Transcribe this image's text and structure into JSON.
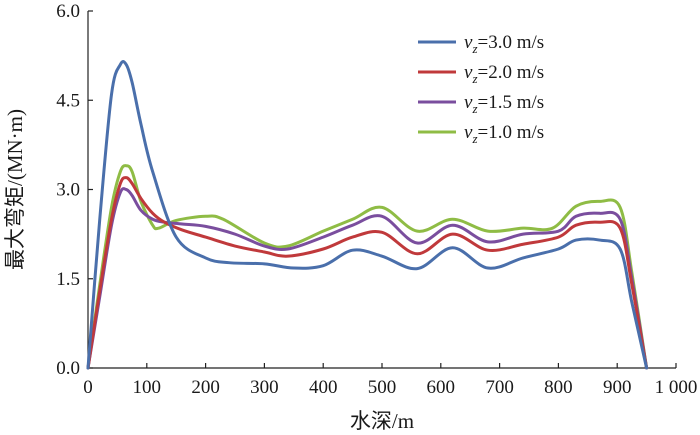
{
  "chart_data": {
    "type": "line",
    "xlabel": "水深/m",
    "ylabel": "最大弯矩/(MN·m)",
    "xlim": [
      0,
      1000
    ],
    "ylim": [
      0,
      6.0
    ],
    "x_ticks": [
      0,
      100,
      200,
      300,
      400,
      500,
      600,
      700,
      800,
      900,
      1000
    ],
    "x_tick_labels": [
      "0",
      "100",
      "200",
      "300",
      "400",
      "500",
      "600",
      "700",
      "800",
      "900",
      "1 000"
    ],
    "y_ticks": [
      0,
      1.5,
      3.0,
      4.5,
      6.0
    ],
    "y_tick_labels": [
      "0.0",
      "1.5",
      "3.0",
      "4.5",
      "6.0"
    ],
    "grid": false,
    "legend_position": "top-right",
    "series": [
      {
        "name": "vz=3.0 m/s",
        "legend_parts": [
          "v",
          "z",
          "=3.0 m/s"
        ],
        "color": "#4a6fab",
        "x": [
          0,
          20,
          40,
          55,
          65,
          75,
          90,
          110,
          150,
          200,
          240,
          300,
          350,
          400,
          450,
          500,
          560,
          620,
          680,
          740,
          800,
          830,
          870,
          905,
          925,
          950
        ],
        "y": [
          0.0,
          2.5,
          4.6,
          5.1,
          5.1,
          4.8,
          4.1,
          3.3,
          2.2,
          1.85,
          1.77,
          1.75,
          1.68,
          1.72,
          1.98,
          1.88,
          1.67,
          2.02,
          1.68,
          1.85,
          2.0,
          2.15,
          2.15,
          2.0,
          1.1,
          0.0
        ]
      },
      {
        "name": "vz=2.0 m/s",
        "legend_parts": [
          "v",
          "z",
          "=2.0 m/s"
        ],
        "color": "#c0393b",
        "x": [
          0,
          20,
          40,
          55,
          65,
          75,
          90,
          110,
          130,
          160,
          200,
          250,
          300,
          340,
          400,
          450,
          500,
          560,
          620,
          680,
          740,
          800,
          830,
          870,
          905,
          925,
          950
        ],
        "y": [
          0.0,
          1.3,
          2.5,
          3.1,
          3.2,
          3.1,
          2.85,
          2.6,
          2.45,
          2.32,
          2.2,
          2.05,
          1.95,
          1.88,
          2.0,
          2.2,
          2.28,
          1.92,
          2.25,
          1.98,
          2.08,
          2.2,
          2.4,
          2.45,
          2.35,
          1.4,
          0.0
        ]
      },
      {
        "name": "vz=1.5 m/s",
        "legend_parts": [
          "v",
          "z",
          "=1.5 m/s"
        ],
        "color": "#7a4e9e",
        "x": [
          0,
          20,
          40,
          55,
          65,
          75,
          90,
          110,
          130,
          160,
          200,
          250,
          300,
          340,
          400,
          450,
          500,
          560,
          620,
          680,
          740,
          800,
          830,
          870,
          905,
          925,
          950
        ],
        "y": [
          0.0,
          1.2,
          2.4,
          2.95,
          3.0,
          2.9,
          2.65,
          2.5,
          2.45,
          2.42,
          2.38,
          2.25,
          2.05,
          2.0,
          2.2,
          2.4,
          2.55,
          2.1,
          2.4,
          2.12,
          2.25,
          2.3,
          2.55,
          2.6,
          2.5,
          1.5,
          0.0
        ]
      },
      {
        "name": "vz=1.0 m/s",
        "legend_parts": [
          "v",
          "z",
          "=1.0 m/s"
        ],
        "color": "#8fbc45",
        "x": [
          0,
          20,
          40,
          55,
          65,
          75,
          90,
          110,
          120,
          150,
          200,
          230,
          300,
          340,
          400,
          450,
          500,
          560,
          620,
          680,
          740,
          790,
          830,
          870,
          905,
          925,
          950
        ],
        "y": [
          0.0,
          1.4,
          2.7,
          3.3,
          3.4,
          3.3,
          2.8,
          2.4,
          2.35,
          2.48,
          2.55,
          2.5,
          2.1,
          2.05,
          2.3,
          2.5,
          2.7,
          2.3,
          2.5,
          2.3,
          2.35,
          2.35,
          2.72,
          2.8,
          2.7,
          1.6,
          0.0
        ]
      }
    ]
  }
}
